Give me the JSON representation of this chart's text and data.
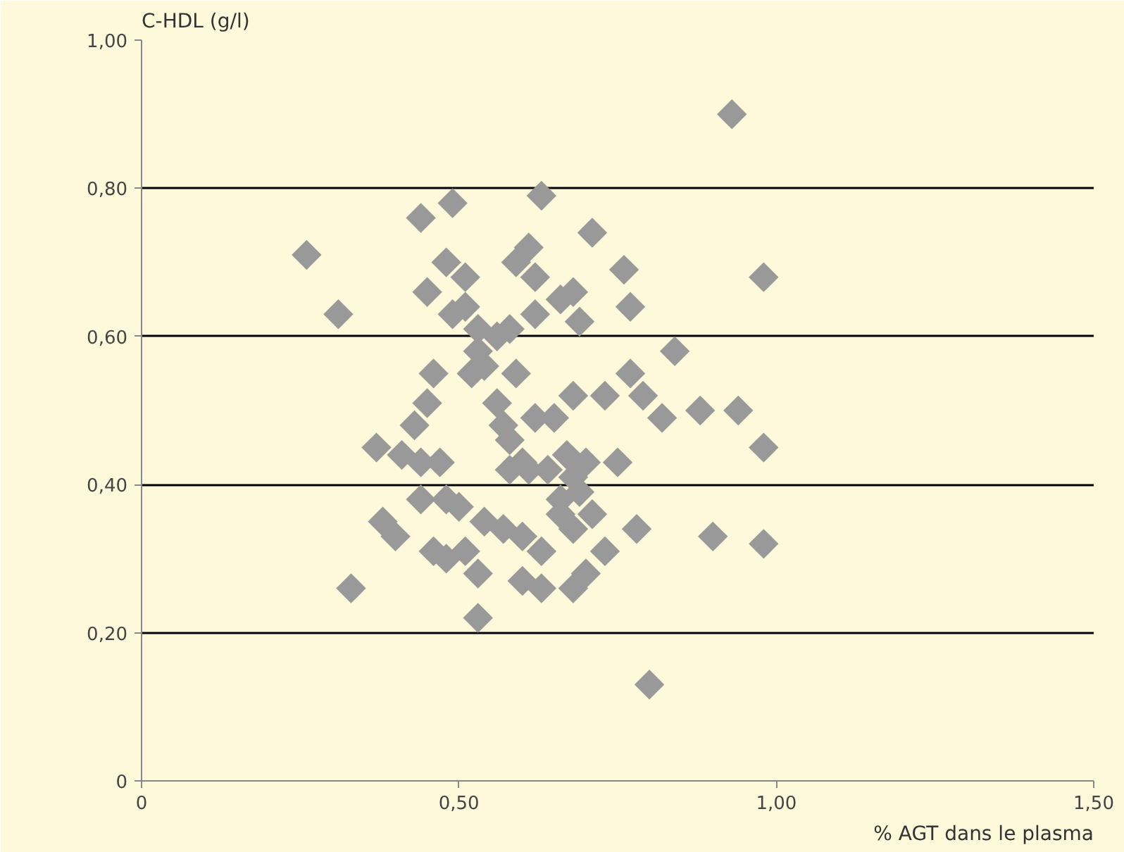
{
  "chart_data": {
    "type": "scatter",
    "xlabel": "% AGT dans le plasma",
    "ylabel": "C-HDL (g/l)",
    "xlim": [
      0,
      1.5
    ],
    "ylim": [
      0,
      1.0
    ],
    "xticks": [
      {
        "value": 0,
        "label": "0"
      },
      {
        "value": 0.5,
        "label": "0,50"
      },
      {
        "value": 1.0,
        "label": "1,00"
      },
      {
        "value": 1.5,
        "label": "1,50"
      }
    ],
    "yticks": [
      {
        "value": 0,
        "label": "0"
      },
      {
        "value": 0.2,
        "label": "0,20"
      },
      {
        "value": 0.4,
        "label": "0,40"
      },
      {
        "value": 0.6,
        "label": "0,60"
      },
      {
        "value": 0.8,
        "label": "0,80"
      },
      {
        "value": 1.0,
        "label": "1,00"
      }
    ],
    "grid": "y",
    "marker": "diamond",
    "series": [
      {
        "color": "#999999",
        "x": [
          0.26,
          0.62,
          0.44,
          0.49,
          0.63,
          0.93,
          0.98,
          0.71,
          0.76,
          0.77,
          0.84,
          0.77,
          0.68,
          0.73,
          0.79,
          0.88,
          0.94,
          0.82,
          0.98,
          0.98,
          0.9,
          0.8,
          0.75,
          0.78,
          0.73,
          0.37,
          0.31,
          0.38,
          0.4,
          0.33,
          0.41,
          0.44,
          0.43,
          0.45,
          0.46,
          0.45,
          0.44,
          0.47,
          0.46,
          0.48,
          0.48,
          0.51,
          0.49,
          0.51,
          0.53,
          0.53,
          0.52,
          0.54,
          0.56,
          0.56,
          0.57,
          0.59,
          0.58,
          0.59,
          0.61,
          0.62,
          0.5,
          0.51,
          0.53,
          0.53,
          0.54,
          0.57,
          0.58,
          0.58,
          0.6,
          0.61,
          0.6,
          0.63,
          0.62,
          0.6,
          0.63,
          0.64,
          0.66,
          0.67,
          0.68,
          0.66,
          0.68,
          0.69,
          0.7,
          0.71,
          0.7,
          0.68,
          0.66,
          0.68,
          0.69,
          0.65,
          0.48
        ],
        "values": [
          0.71,
          0.63,
          0.76,
          0.78,
          0.79,
          0.9,
          0.68,
          0.74,
          0.69,
          0.64,
          0.58,
          0.55,
          0.52,
          0.52,
          0.52,
          0.5,
          0.5,
          0.49,
          0.45,
          0.32,
          0.33,
          0.13,
          0.43,
          0.34,
          0.31,
          0.45,
          0.63,
          0.35,
          0.33,
          0.26,
          0.44,
          0.43,
          0.48,
          0.51,
          0.55,
          0.66,
          0.38,
          0.43,
          0.31,
          0.3,
          0.7,
          0.68,
          0.63,
          0.64,
          0.61,
          0.58,
          0.55,
          0.56,
          0.6,
          0.51,
          0.48,
          0.55,
          0.61,
          0.7,
          0.72,
          0.68,
          0.37,
          0.31,
          0.28,
          0.22,
          0.35,
          0.34,
          0.42,
          0.46,
          0.43,
          0.42,
          0.33,
          0.31,
          0.49,
          0.27,
          0.26,
          0.42,
          0.38,
          0.44,
          0.41,
          0.36,
          0.34,
          0.39,
          0.43,
          0.36,
          0.28,
          0.26,
          0.65,
          0.66,
          0.62,
          0.49,
          0.38
        ]
      }
    ]
  }
}
